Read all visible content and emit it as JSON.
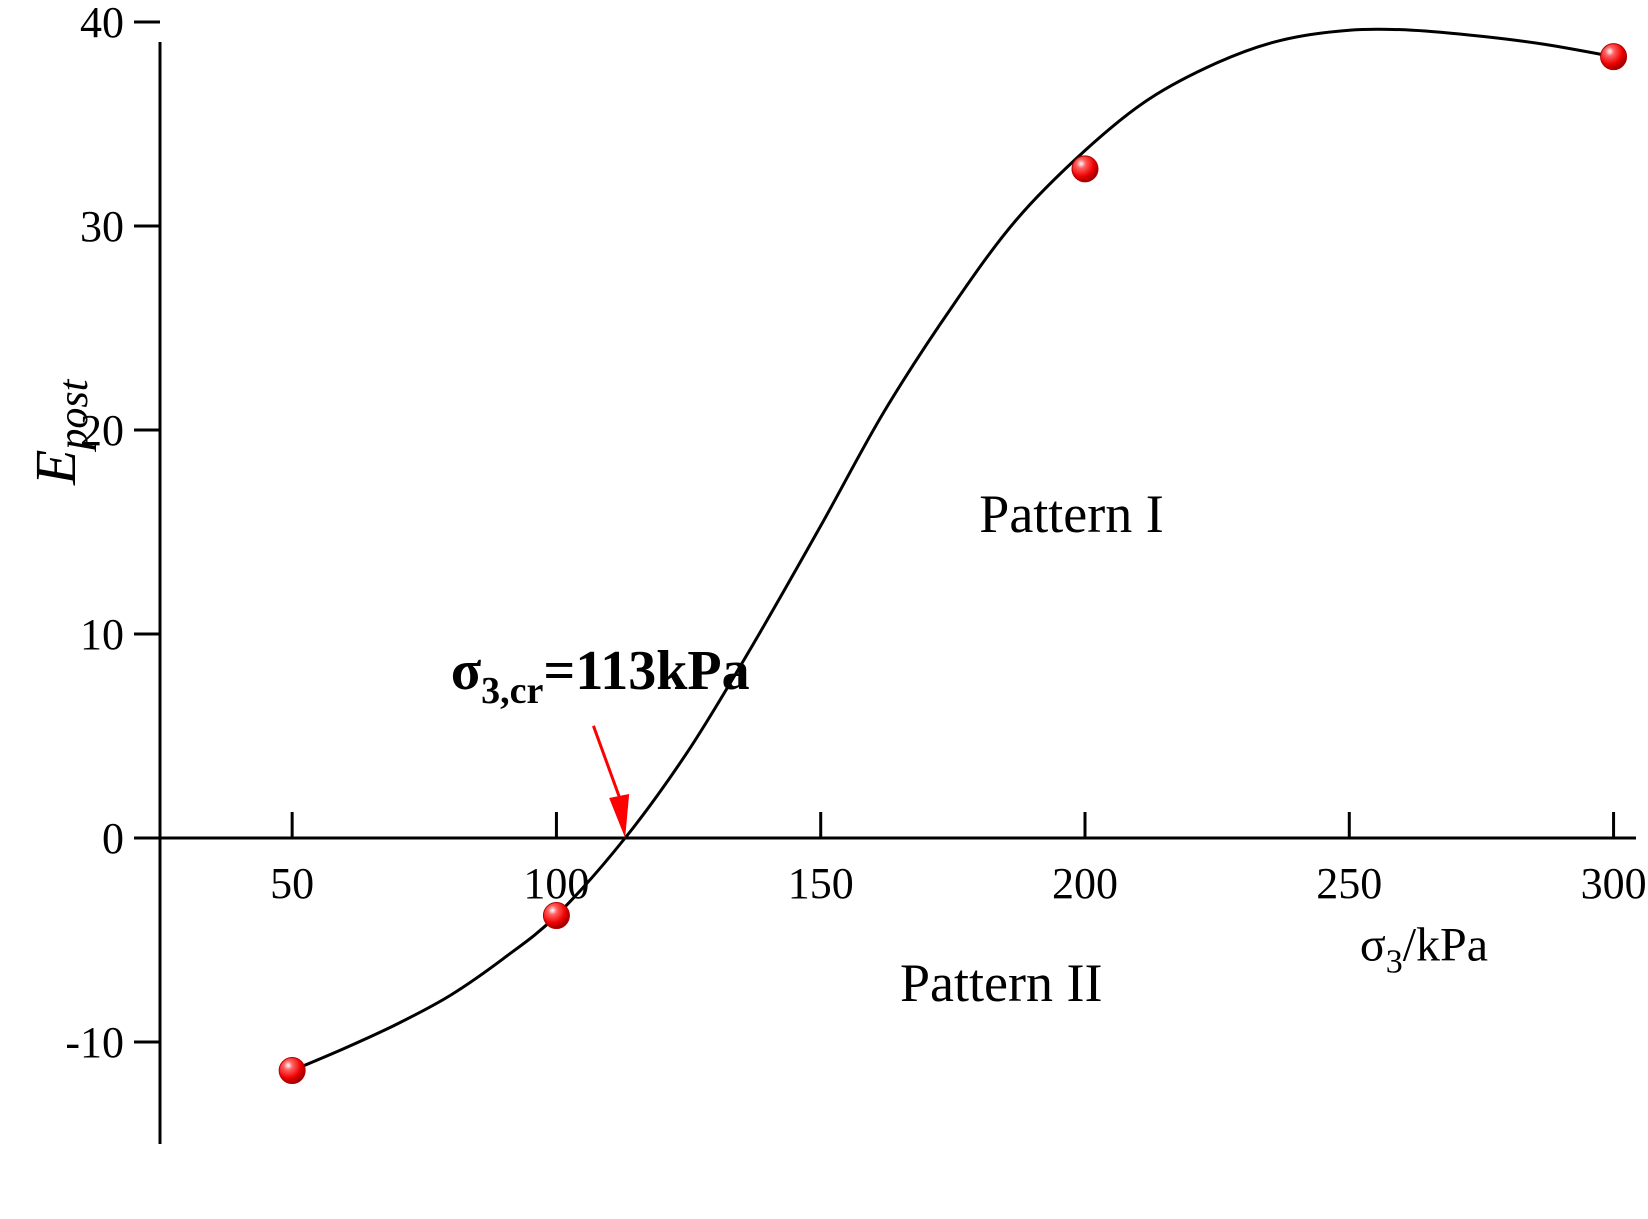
{
  "chart_data": {
    "type": "scatter",
    "x_axis_label": {
      "symbol": "σ",
      "subscript": "3",
      "unit": "/kPa"
    },
    "y_axis_label": {
      "main": "E",
      "subscript": "post"
    },
    "xlim": [
      25,
      305
    ],
    "ylim": [
      -15,
      40
    ],
    "x_ticks": [
      50,
      100,
      150,
      200,
      250,
      300
    ],
    "y_ticks": [
      -10,
      0,
      10,
      20,
      30,
      40
    ],
    "series": [
      {
        "points": [
          {
            "x": 50,
            "y": -11.4
          },
          {
            "x": 100,
            "y": -3.8
          },
          {
            "x": 200,
            "y": 32.8
          },
          {
            "x": 300,
            "y": 38.3
          }
        ],
        "marker_color": "#ff0000",
        "line_color": "#000000"
      }
    ],
    "fitted_curve": [
      [
        50,
        -11.4
      ],
      [
        60,
        -10.3
      ],
      [
        70,
        -9.1
      ],
      [
        80,
        -7.7
      ],
      [
        90,
        -5.9
      ],
      [
        100,
        -3.8
      ],
      [
        113,
        0.0
      ],
      [
        125,
        4.3
      ],
      [
        137,
        9.4
      ],
      [
        150,
        15.3
      ],
      [
        162,
        20.9
      ],
      [
        175,
        26.1
      ],
      [
        187,
        30.3
      ],
      [
        200,
        33.7
      ],
      [
        212,
        36.2
      ],
      [
        225,
        38.0
      ],
      [
        237,
        39.1
      ],
      [
        250,
        39.6
      ],
      [
        262,
        39.6
      ],
      [
        275,
        39.3
      ],
      [
        287,
        38.9
      ],
      [
        300,
        38.3
      ]
    ],
    "annotations": {
      "critical": {
        "symbol": "σ",
        "subscript": "3,cr",
        "value": "=113kPa",
        "x": 113,
        "y": 0,
        "arrow_color": "#ff0000"
      },
      "pattern_1": {
        "label": "Pattern I",
        "x": 180,
        "y": 15
      },
      "pattern_2": {
        "label": "Pattern II",
        "x": 165,
        "y": -8
      }
    }
  }
}
